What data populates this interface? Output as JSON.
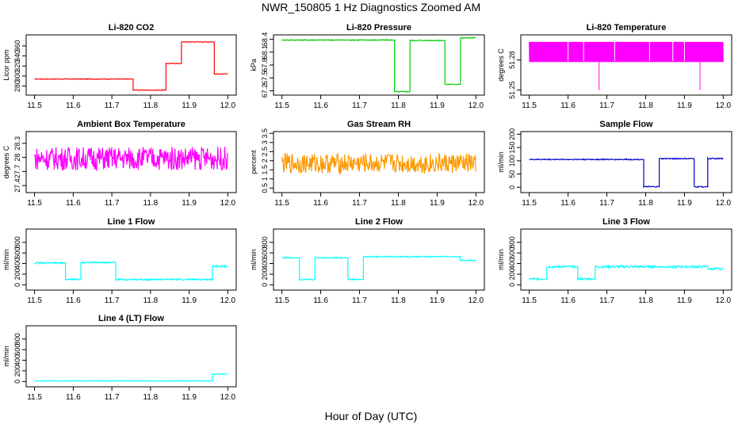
{
  "title": "NWR_150805  1 Hz Diagnostics Zoomed AM",
  "xlabel": "Hour of Day (UTC)",
  "chart_data": [
    {
      "type": "line",
      "title": "Li-820 CO2",
      "ylabel": "Licor ppm",
      "color": "#ff0000",
      "xlim": [
        11.5,
        12.0
      ],
      "ylim": [
        262,
        382
      ],
      "yticks": [
        280,
        300,
        320,
        340,
        360
      ],
      "xticks": [
        11.5,
        11.6,
        11.7,
        11.8,
        11.9,
        12.0
      ],
      "noise": 0.6,
      "segments": [
        [
          11.5,
          11.75,
          294
        ],
        [
          11.755,
          11.835,
          272
        ],
        [
          11.84,
          11.875,
          325
        ],
        [
          11.88,
          11.96,
          368
        ],
        [
          11.965,
          12.0,
          304
        ]
      ]
    },
    {
      "type": "line",
      "title": "Li-820 Pressure",
      "ylabel": "kPa",
      "color": "#00cc00",
      "xlim": [
        11.5,
        12.0
      ],
      "ylim": [
        67.1,
        68.5
      ],
      "yticks": [
        67.2,
        67.5,
        67.8,
        68.1,
        68.4
      ],
      "xticks": [
        11.5,
        11.6,
        11.7,
        11.8,
        11.9,
        12.0
      ],
      "noise": 0.01,
      "segments": [
        [
          11.5,
          11.79,
          68.38
        ],
        [
          11.79,
          11.83,
          67.18
        ],
        [
          11.83,
          11.92,
          68.37
        ],
        [
          11.92,
          11.955,
          67.35
        ],
        [
          11.96,
          12.0,
          68.43
        ]
      ]
    },
    {
      "type": "line",
      "title": "Li-820 Temperature",
      "ylabel": "degrees C",
      "color": "#ff00ff",
      "xlim": [
        11.5,
        12.0
      ],
      "ylim": [
        51.245,
        51.305
      ],
      "yticks": [
        51.25,
        51.28
      ],
      "xticks": [
        11.5,
        11.6,
        11.7,
        11.8,
        11.9,
        12.0
      ],
      "noise": 0.0,
      "segments": [
        [
          11.5,
          12.0,
          51.285
        ]
      ]
    },
    {
      "type": "line",
      "title": "Ambient Box Temperature",
      "ylabel": "degrees C",
      "color": "#ff00ff",
      "xlim": [
        11.5,
        12.0
      ],
      "ylim": [
        27.25,
        28.55
      ],
      "yticks": [
        27.4,
        27.7,
        28.0,
        28.3
      ],
      "xticks": [
        11.5,
        11.6,
        11.7,
        11.8,
        11.9,
        12.0
      ],
      "noise": 0.25,
      "segments": [
        [
          11.5,
          12.0,
          27.98
        ]
      ]
    },
    {
      "type": "line",
      "title": "Gas Stream RH",
      "ylabel": "percent",
      "color": "#ff9900",
      "xlim": [
        11.5,
        12.0
      ],
      "ylim": [
        0.25,
        3.6
      ],
      "yticks": [
        0.5,
        1.0,
        1.5,
        2.0,
        2.5,
        3.0,
        3.5
      ],
      "xticks": [
        11.5,
        11.6,
        11.7,
        11.8,
        11.9,
        12.0
      ],
      "noise": 0.55,
      "segments": [
        [
          11.5,
          12.0,
          1.85
        ]
      ]
    },
    {
      "type": "line",
      "title": "Sample Flow",
      "ylabel": "ml/min",
      "color": "#0000cc",
      "xlim": [
        11.5,
        12.0
      ],
      "ylim": [
        -20,
        210
      ],
      "yticks": [
        0,
        50,
        100,
        150,
        200
      ],
      "xticks": [
        11.5,
        11.6,
        11.7,
        11.8,
        11.9,
        12.0
      ],
      "noise": 2,
      "segments": [
        [
          11.5,
          11.79,
          105
        ],
        [
          11.795,
          11.83,
          2
        ],
        [
          11.835,
          11.92,
          108
        ],
        [
          11.925,
          11.955,
          2
        ],
        [
          11.96,
          12.0,
          108
        ]
      ]
    },
    {
      "type": "line",
      "title": "Line 1 Flow",
      "ylabel": "ml/min",
      "color": "#00ffff",
      "xlim": [
        11.5,
        12.0
      ],
      "ylim": [
        -100,
        1050
      ],
      "yticks": [
        0,
        200,
        400,
        600,
        800
      ],
      "xticks": [
        11.5,
        11.6,
        11.7,
        11.8,
        11.9,
        12.0
      ],
      "noise": 15,
      "segments": [
        [
          11.5,
          11.58,
          410
        ],
        [
          11.58,
          11.62,
          100
        ],
        [
          11.62,
          11.705,
          420
        ],
        [
          11.71,
          11.96,
          100
        ],
        [
          11.96,
          12.0,
          350
        ]
      ]
    },
    {
      "type": "line",
      "title": "Line 2 Flow",
      "ylabel": "ml/min",
      "color": "#00ffff",
      "xlim": [
        11.5,
        12.0
      ],
      "ylim": [
        -100,
        1050
      ],
      "yticks": [
        0,
        200,
        400,
        600,
        800
      ],
      "xticks": [
        11.5,
        11.6,
        11.7,
        11.8,
        11.9,
        12.0
      ],
      "noise": 10,
      "segments": [
        [
          11.5,
          11.54,
          510
        ],
        [
          11.545,
          11.58,
          100
        ],
        [
          11.585,
          11.665,
          510
        ],
        [
          11.67,
          11.705,
          100
        ],
        [
          11.71,
          11.96,
          530
        ],
        [
          11.96,
          12.0,
          460
        ]
      ]
    },
    {
      "type": "line",
      "title": "Line 3 Flow",
      "ylabel": "ml/min",
      "color": "#00ffff",
      "xlim": [
        11.5,
        12.0
      ],
      "ylim": [
        -100,
        1050
      ],
      "yticks": [
        0,
        200,
        400,
        600,
        800
      ],
      "xticks": [
        11.5,
        11.6,
        11.7,
        11.8,
        11.9,
        12.0
      ],
      "noise": 20,
      "segments": [
        [
          11.5,
          11.54,
          110
        ],
        [
          11.545,
          11.62,
          340
        ],
        [
          11.625,
          11.665,
          110
        ],
        [
          11.67,
          11.955,
          340
        ],
        [
          11.96,
          12.0,
          300
        ]
      ]
    },
    {
      "type": "line",
      "title": "Line 4 (LT) Flow",
      "ylabel": "ml/min",
      "color": "#00ffff",
      "xlim": [
        11.5,
        12.0
      ],
      "ylim": [
        -100,
        1050
      ],
      "yticks": [
        0,
        200,
        400,
        600,
        800
      ],
      "xticks": [
        11.5,
        11.6,
        11.7,
        11.8,
        11.9,
        12.0
      ],
      "noise": 3,
      "segments": [
        [
          11.5,
          11.96,
          10
        ],
        [
          11.96,
          12.0,
          140
        ]
      ]
    }
  ]
}
